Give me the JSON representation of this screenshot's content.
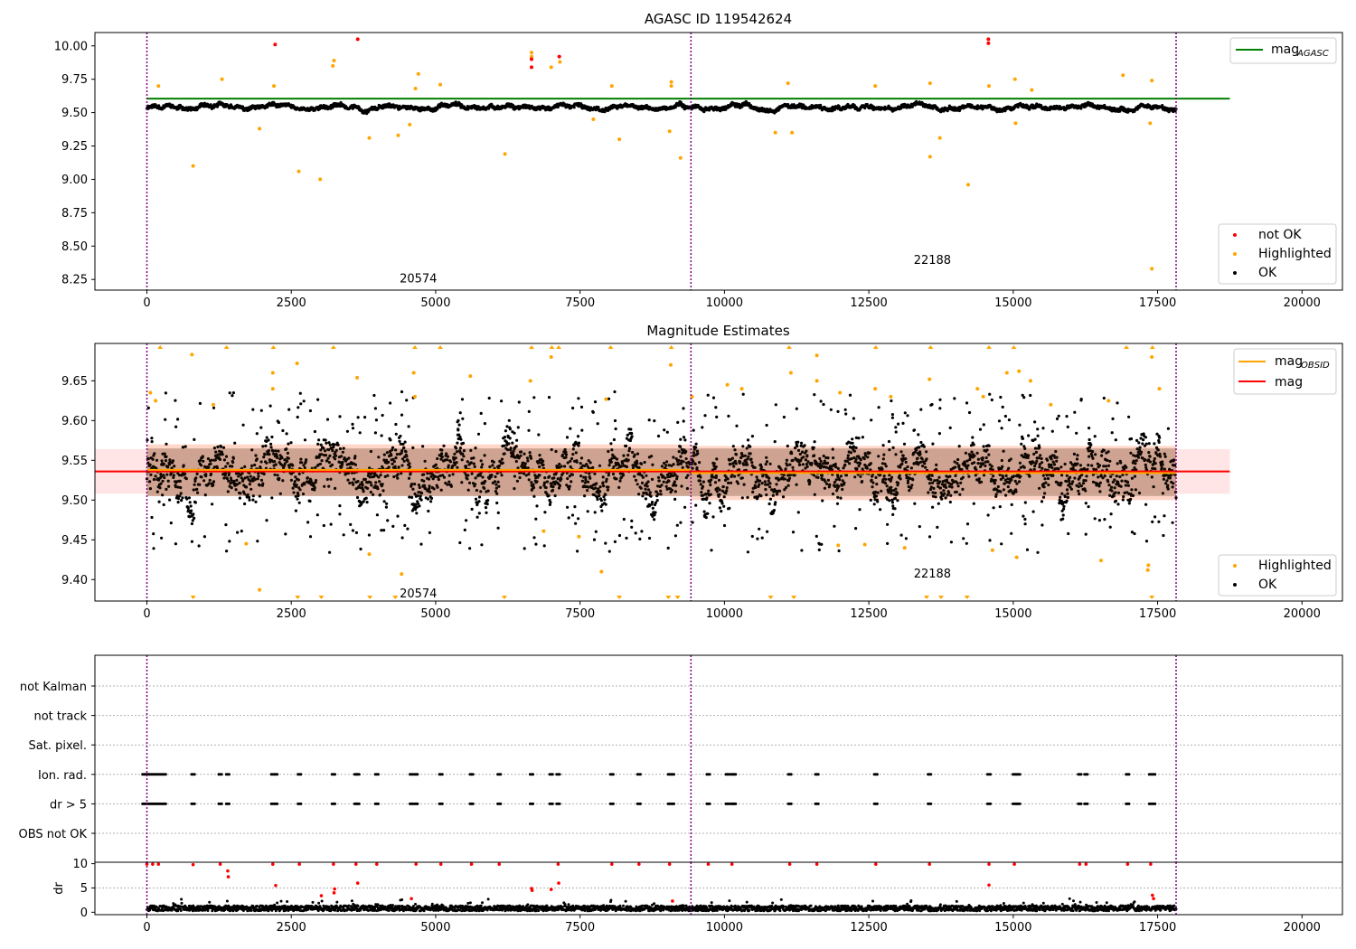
{
  "chart_data": [
    {
      "type": "scatter",
      "title": "AGASC ID 119542624",
      "xlim": [
        -900,
        20700
      ],
      "ylim": [
        8.17,
        10.1
      ],
      "xticks": [
        0,
        2500,
        5000,
        7500,
        10000,
        12500,
        15000,
        17500,
        20000
      ],
      "yticks": [
        8.25,
        8.5,
        8.75,
        9.0,
        9.25,
        9.5,
        9.75,
        10.0
      ],
      "ytick_labels": [
        "8.25",
        "8.50",
        "8.75",
        "9.00",
        "9.25",
        "9.50",
        "9.75",
        "10.00"
      ],
      "obsid_boundaries": [
        0,
        9420,
        17820
      ],
      "obsid_labels": [
        {
          "text": "20574",
          "x": 4700,
          "y": 8.26
        },
        {
          "text": "22188",
          "x": 13600,
          "y": 8.4
        }
      ],
      "reference_lines": [
        {
          "name": "mag_AGASC",
          "value": 9.605,
          "x_range": [
            0,
            18750
          ],
          "color": "#008000"
        }
      ],
      "ok_band": {
        "x_range": [
          0,
          17820
        ],
        "y_center": 9.54,
        "amplitude": 0.03
      },
      "series": [
        {
          "name": "not OK",
          "color": "#ff0000",
          "points": [
            [
              2220,
              10.01
            ],
            [
              3650,
              10.05
            ],
            [
              6660,
              9.84
            ],
            [
              6660,
              9.9
            ],
            [
              7140,
              9.92
            ],
            [
              14570,
              10.05
            ],
            [
              14570,
              10.02
            ]
          ]
        },
        {
          "name": "Highlighted",
          "color": "#ffa500",
          "points": [
            [
              800,
              9.1
            ],
            [
              1950,
              9.38
            ],
            [
              2630,
              9.06
            ],
            [
              3000,
              9.0
            ],
            [
              3850,
              9.31
            ],
            [
              4350,
              9.33
            ],
            [
              4550,
              9.41
            ],
            [
              6200,
              9.19
            ],
            [
              7730,
              9.45
            ],
            [
              8180,
              9.3
            ],
            [
              9050,
              9.36
            ],
            [
              9240,
              9.16
            ],
            [
              10880,
              9.35
            ],
            [
              11170,
              9.35
            ],
            [
              13560,
              9.17
            ],
            [
              13730,
              9.31
            ],
            [
              14220,
              8.96
            ],
            [
              15040,
              9.42
            ],
            [
              17370,
              9.42
            ],
            [
              17400,
              8.33
            ],
            [
              200,
              9.7
            ],
            [
              1300,
              9.75
            ],
            [
              2200,
              9.7
            ],
            [
              3220,
              9.85
            ],
            [
              3240,
              9.89
            ],
            [
              4650,
              9.68
            ],
            [
              4700,
              9.79
            ],
            [
              5080,
              9.71
            ],
            [
              6660,
              9.95
            ],
            [
              6660,
              9.92
            ],
            [
              7000,
              9.84
            ],
            [
              7150,
              9.88
            ],
            [
              8050,
              9.7
            ],
            [
              9080,
              9.73
            ],
            [
              9080,
              9.7
            ],
            [
              11100,
              9.72
            ],
            [
              12610,
              9.7
            ],
            [
              13560,
              9.72
            ],
            [
              14580,
              9.7
            ],
            [
              15030,
              9.75
            ],
            [
              15320,
              9.67
            ],
            [
              16900,
              9.78
            ],
            [
              17400,
              9.74
            ]
          ]
        },
        {
          "name": "OK",
          "color": "#000000",
          "x_range": [
            0,
            17820
          ]
        }
      ],
      "legends": [
        {
          "entries": [
            {
              "label": "mag",
              "sub": "AGASC",
              "kind": "line",
              "color": "#008000"
            }
          ],
          "position": "upper right"
        },
        {
          "entries": [
            {
              "label": "not OK",
              "kind": "dot",
              "color": "#ff0000"
            },
            {
              "label": "Highlighted",
              "kind": "dot",
              "color": "#ffa500"
            },
            {
              "label": "OK",
              "kind": "dot",
              "color": "#000000"
            }
          ],
          "position": "lower right"
        }
      ]
    },
    {
      "type": "scatter",
      "title": "Magnitude Estimates",
      "xlim": [
        -900,
        20700
      ],
      "ylim": [
        9.373,
        9.697
      ],
      "xticks": [
        0,
        2500,
        5000,
        7500,
        10000,
        12500,
        15000,
        17500,
        20000
      ],
      "yticks": [
        9.4,
        9.45,
        9.5,
        9.55,
        9.6,
        9.65
      ],
      "ytick_labels": [
        "9.40",
        "9.45",
        "9.50",
        "9.55",
        "9.60",
        "9.65"
      ],
      "obsid_boundaries": [
        0,
        9420,
        17820
      ],
      "obsid_labels": [
        {
          "text": "20574",
          "x": 4700,
          "y": 9.383
        },
        {
          "text": "22188",
          "x": 13600,
          "y": 9.408
        }
      ],
      "reference_lines": [
        {
          "name": "mag",
          "value": 9.536,
          "x_range": [
            -900,
            18750
          ],
          "color": "#ff0000"
        },
        {
          "name": "mag_OBSID",
          "segments": [
            {
              "x": [
                0,
                9420
              ],
              "value": 9.538
            },
            {
              "x": [
                9420,
                17820
              ],
              "value": 9.534
            }
          ],
          "color": "#ffa500"
        }
      ],
      "bands": [
        {
          "x_range": [
            -900,
            18750
          ],
          "y_range": [
            9.508,
            9.564
          ],
          "color": "#ffdcdc"
        },
        {
          "x_range": [
            0,
            9420
          ],
          "y_range": [
            9.505,
            9.57
          ],
          "color": "#ffc8b4"
        },
        {
          "x_range": [
            9420,
            17820
          ],
          "y_range": [
            9.5,
            9.568
          ],
          "color": "#ffc8b4"
        }
      ],
      "ok_band": {
        "x_range": [
          0,
          17820
        ],
        "y_center": 9.535,
        "amplitude": 0.045
      },
      "series": [
        {
          "name": "Highlighted",
          "color": "#ffa500",
          "points": [
            [
              1720,
              9.445
            ],
            [
              1950,
              9.387
            ],
            [
              3850,
              9.432
            ],
            [
              4410,
              9.407
            ],
            [
              7480,
              9.454
            ],
            [
              7870,
              9.41
            ],
            [
              6870,
              9.461
            ],
            [
              11970,
              9.443
            ],
            [
              12430,
              9.444
            ],
            [
              13120,
              9.44
            ],
            [
              14640,
              9.437
            ],
            [
              15060,
              9.428
            ],
            [
              16520,
              9.424
            ],
            [
              17340,
              9.418
            ],
            [
              17330,
              9.412
            ],
            [
              60,
              9.635
            ],
            [
              150,
              9.625
            ],
            [
              780,
              9.683
            ],
            [
              1150,
              9.62
            ],
            [
              2180,
              9.66
            ],
            [
              2180,
              9.64
            ],
            [
              2600,
              9.672
            ],
            [
              3640,
              9.654
            ],
            [
              4620,
              9.66
            ],
            [
              4640,
              9.63
            ],
            [
              5600,
              9.656
            ],
            [
              6640,
              9.65
            ],
            [
              7000,
              9.68
            ],
            [
              7950,
              9.627
            ],
            [
              9070,
              9.67
            ],
            [
              9440,
              9.63
            ],
            [
              10050,
              9.645
            ],
            [
              10300,
              9.64
            ],
            [
              11150,
              9.66
            ],
            [
              11600,
              9.682
            ],
            [
              11600,
              9.65
            ],
            [
              12000,
              9.635
            ],
            [
              12610,
              9.64
            ],
            [
              12880,
              9.63
            ],
            [
              13550,
              9.652
            ],
            [
              14380,
              9.64
            ],
            [
              14480,
              9.63
            ],
            [
              14890,
              9.66
            ],
            [
              15100,
              9.662
            ],
            [
              15300,
              9.65
            ],
            [
              15650,
              9.62
            ],
            [
              16650,
              9.625
            ],
            [
              17400,
              9.68
            ],
            [
              17530,
              9.64
            ]
          ]
        },
        {
          "name": "Highlighted (clipped low)",
          "color": "#ffa500",
          "xs": [
            800,
            2610,
            3020,
            3860,
            4300,
            6190,
            8180,
            9030,
            9190,
            10800,
            11200,
            13500,
            13750,
            14200,
            17400
          ]
        },
        {
          "name": "Highlighted (clipped high)",
          "color": "#ffa500",
          "xs": [
            230,
            1380,
            2190,
            3230,
            4640,
            5080,
            6660,
            7010,
            7130,
            8030,
            9080,
            11120,
            12620,
            13570,
            14580,
            15010,
            16960,
            17410
          ]
        },
        {
          "name": "OK",
          "color": "#000000",
          "x_range": [
            0,
            17820
          ]
        }
      ],
      "legends": [
        {
          "entries": [
            {
              "label": "mag",
              "sub": "OBSID",
              "kind": "line",
              "color": "#ffa500"
            },
            {
              "label": "mag",
              "kind": "line",
              "color": "#ff0000"
            }
          ],
          "position": "upper right"
        },
        {
          "entries": [
            {
              "label": "Highlighted",
              "kind": "dot",
              "color": "#ffa500"
            },
            {
              "label": "OK",
              "kind": "dot",
              "color": "#000000"
            }
          ],
          "position": "lower right"
        }
      ]
    },
    {
      "type": "scatter",
      "title": "",
      "xlim": [
        -900,
        20700
      ],
      "categories": [
        "not Kalman",
        "not track",
        "Sat. pixel.",
        "Ion. rad.",
        "dr > 5",
        "OBS not OK"
      ],
      "flag_times": [
        0,
        100,
        200,
        250,
        800,
        1270,
        1400,
        2180,
        2230,
        2640,
        3230,
        3620,
        3650,
        3980,
        4580,
        4660,
        5090,
        5620,
        6100,
        6660,
        7000,
        7120,
        8050,
        8520,
        9050,
        9100,
        9720,
        10050,
        10130,
        10170,
        11130,
        11600,
        12620,
        13550,
        14580,
        15020,
        15090,
        16150,
        16260,
        16980,
        17380,
        17430
      ],
      "flag_rows": [
        "Ion. rad.",
        "dr > 5"
      ],
      "dr_panel": {
        "ylabel": "dr",
        "ylim": [
          -0.5,
          10.3
        ],
        "yticks": [
          0,
          5,
          10
        ],
        "high_points": [
          [
            0,
            9.9
          ],
          [
            100,
            9.9
          ],
          [
            200,
            9.9
          ],
          [
            800,
            9.8
          ],
          [
            1270,
            9.9
          ],
          [
            1400,
            8.5
          ],
          [
            1410,
            7.3
          ],
          [
            2230,
            5.5
          ],
          [
            2180,
            9.9
          ],
          [
            2640,
            9.9
          ],
          [
            3020,
            3.4
          ],
          [
            3230,
            9.9
          ],
          [
            3250,
            4.8
          ],
          [
            3240,
            4.0
          ],
          [
            3650,
            6.0
          ],
          [
            3620,
            9.9
          ],
          [
            3980,
            9.9
          ],
          [
            4660,
            9.9
          ],
          [
            4580,
            2.8
          ],
          [
            5090,
            9.9
          ],
          [
            5620,
            9.9
          ],
          [
            6100,
            9.9
          ],
          [
            6660,
            4.9
          ],
          [
            6670,
            4.5
          ],
          [
            7000,
            4.7
          ],
          [
            7130,
            6.0
          ],
          [
            7120,
            9.9
          ],
          [
            8050,
            9.9
          ],
          [
            8520,
            9.9
          ],
          [
            9050,
            9.9
          ],
          [
            9100,
            2.3
          ],
          [
            9720,
            9.9
          ],
          [
            10130,
            9.9
          ],
          [
            11130,
            9.9
          ],
          [
            11600,
            9.9
          ],
          [
            12620,
            9.9
          ],
          [
            13550,
            9.9
          ],
          [
            14580,
            5.6
          ],
          [
            14580,
            9.9
          ],
          [
            15020,
            9.9
          ],
          [
            16150,
            9.9
          ],
          [
            16260,
            9.9
          ],
          [
            16980,
            9.9
          ],
          [
            17380,
            9.9
          ],
          [
            17410,
            3.5
          ],
          [
            17430,
            2.8
          ]
        ],
        "base_band": {
          "x_range": [
            0,
            17820
          ],
          "level": 0.9
        }
      }
    }
  ]
}
